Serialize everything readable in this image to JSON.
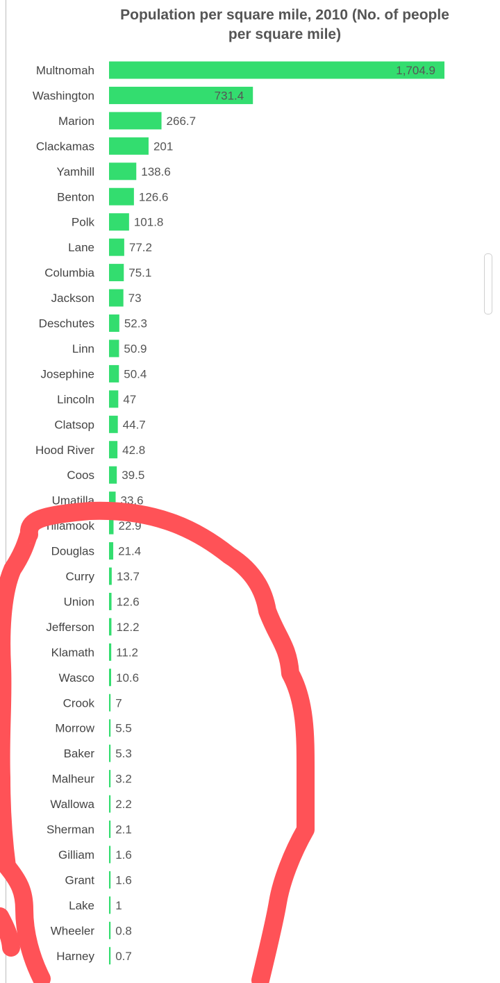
{
  "chart_data": {
    "type": "bar",
    "orientation": "horizontal",
    "title": "Population per square mile, 2010 (No. of people per square mile)",
    "categories": [
      "Multnomah",
      "Washington",
      "Marion",
      "Clackamas",
      "Yamhill",
      "Benton",
      "Polk",
      "Lane",
      "Columbia",
      "Jackson",
      "Deschutes",
      "Linn",
      "Josephine",
      "Lincoln",
      "Clatsop",
      "Hood River",
      "Coos",
      "Umatilla",
      "Tillamook",
      "Douglas",
      "Curry",
      "Union",
      "Jefferson",
      "Klamath",
      "Wasco",
      "Crook",
      "Morrow",
      "Baker",
      "Malheur",
      "Wallowa",
      "Sherman",
      "Gilliam",
      "Grant",
      "Lake",
      "Wheeler",
      "Harney"
    ],
    "values": [
      1704.9,
      731.4,
      266.7,
      201,
      138.6,
      126.6,
      101.8,
      77.2,
      75.1,
      73,
      52.3,
      50.9,
      50.4,
      47,
      44.7,
      42.8,
      39.5,
      33.6,
      22.9,
      21.4,
      13.7,
      12.6,
      12.2,
      11.2,
      10.6,
      7,
      5.5,
      5.3,
      3.2,
      2.2,
      2.1,
      1.6,
      1.6,
      1,
      0.8,
      0.7
    ],
    "value_labels": [
      "1,704.9",
      "731.4",
      "266.7",
      "201",
      "138.6",
      "126.6",
      "101.8",
      "77.2",
      "75.1",
      "73",
      "52.3",
      "50.9",
      "50.4",
      "47",
      "44.7",
      "42.8",
      "39.5",
      "33.6",
      "22.9",
      "21.4",
      "13.7",
      "12.6",
      "12.2",
      "11.2",
      "10.6",
      "7",
      "5.5",
      "5.3",
      "3.2",
      "2.2",
      "2.1",
      "1.6",
      "1.6",
      "1",
      "0.8",
      "0.7"
    ],
    "xlim": [
      0,
      1704.9
    ],
    "bar_color": "#33dd6f",
    "grid": false,
    "legend": "none"
  },
  "annotation": {
    "type": "hand-drawn circle",
    "color": "#ff5257"
  }
}
